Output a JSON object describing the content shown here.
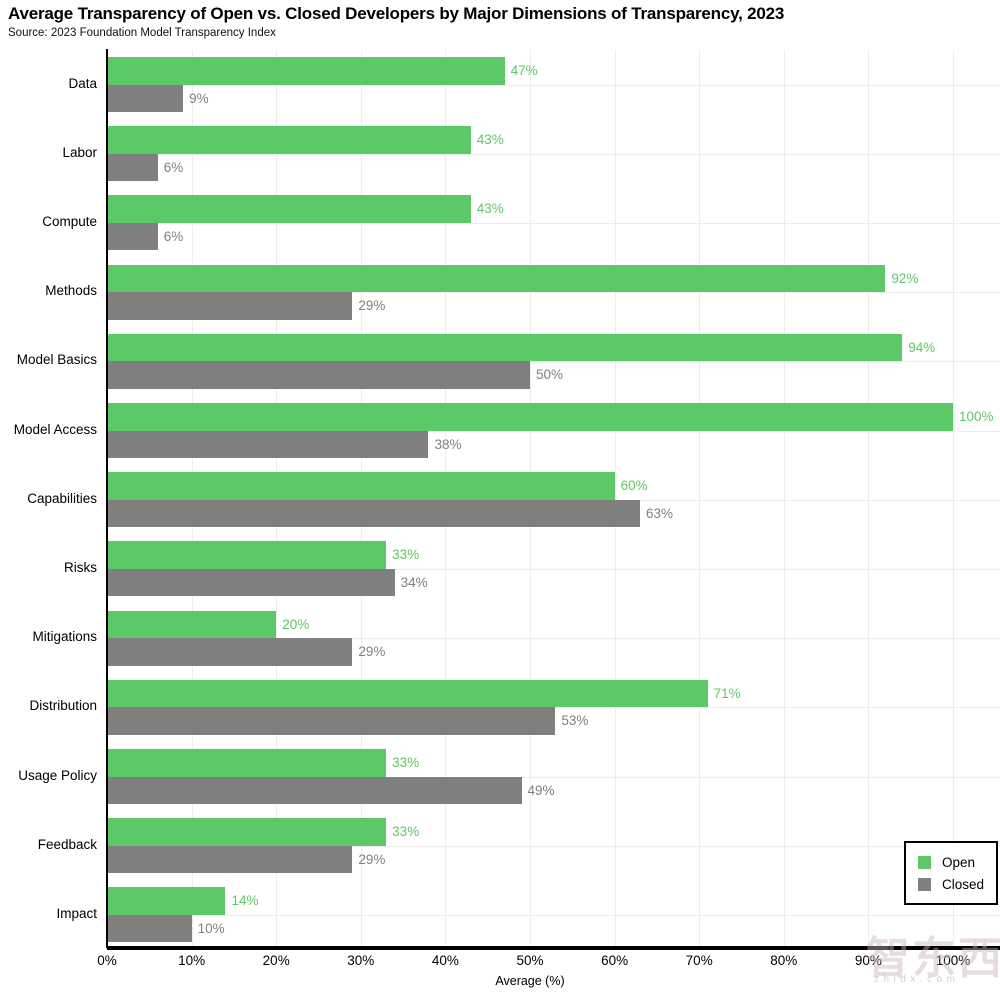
{
  "chart_data": {
    "type": "bar",
    "orientation": "horizontal",
    "title": "Average Transparency of Open vs. Closed Developers by Major Dimensions of Transparency, 2023",
    "source": "Source: 2023 Foundation Model Transparency Index",
    "categories": [
      "Data",
      "Labor",
      "Compute",
      "Methods",
      "Model Basics",
      "Model Access",
      "Capabilities",
      "Risks",
      "Mitigations",
      "Distribution",
      "Usage Policy",
      "Feedback",
      "Impact"
    ],
    "series": [
      {
        "name": "Open",
        "color": "#5dc868",
        "label_color": "#5dc868",
        "values": [
          47,
          43,
          43,
          92,
          94,
          100,
          60,
          33,
          20,
          71,
          33,
          33,
          14
        ]
      },
      {
        "name": "Closed",
        "color": "#7f7f7f",
        "label_color": "#7f7f7f",
        "values": [
          9,
          6,
          6,
          29,
          50,
          38,
          63,
          34,
          29,
          53,
          49,
          29,
          10
        ]
      }
    ],
    "value_suffix": "%",
    "xlabel": "Average (%)",
    "x_ticks": [
      "0%",
      "10%",
      "20%",
      "30%",
      "40%",
      "50%",
      "60%",
      "70%",
      "80%",
      "90%",
      "100%"
    ],
    "xlim": [
      0,
      100
    ],
    "grid": true,
    "legend_position": "inside-bottom-right"
  },
  "watermark": {
    "text_cjk": "智东西",
    "text_latin": "zhidx.com"
  }
}
